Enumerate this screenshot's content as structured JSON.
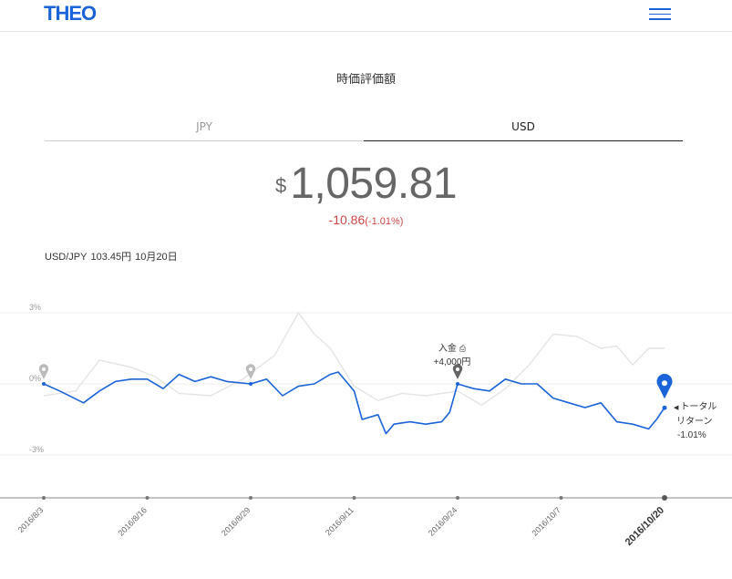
{
  "header": {
    "logo": "THEO"
  },
  "section_title": "時価評価額",
  "tabs": [
    {
      "label": "JPY",
      "active": false
    },
    {
      "label": "USD",
      "active": true
    }
  ],
  "value": {
    "currency": "$",
    "amount": "1,059.81"
  },
  "change": {
    "amount": "-10.86",
    "percent": "(-1.01%)"
  },
  "rate": {
    "label": "USD/JPY",
    "value": "103.45円",
    "date": "10月20日"
  },
  "deposit": {
    "label": "入金",
    "amount": "+4,000円"
  },
  "total_return": {
    "label_1": "トータル",
    "label_2": "リターン",
    "value": "-1.01%"
  },
  "colors": {
    "accent": "#1a63d8",
    "negative": "#d04545",
    "benchmark": "#e4e4e4"
  },
  "chart_data": {
    "type": "line",
    "y_unit": "%",
    "ylim": [
      -4.5,
      4
    ],
    "yticks": [
      {
        "value": 3,
        "label": "3%"
      },
      {
        "value": 0,
        "label": "0%"
      },
      {
        "value": -3,
        "label": "-3%"
      }
    ],
    "x_labels": [
      "2016/8/3",
      "2016/8/16",
      "2016/8/29",
      "2016/9/11",
      "2016/9/24",
      "2016/10/7",
      "2016/10/20"
    ],
    "series": [
      {
        "role": "portfolio",
        "x": [
          "2016/8/3",
          "2016/8/5",
          "2016/8/8",
          "2016/8/10",
          "2016/8/12",
          "2016/8/14",
          "2016/8/16",
          "2016/8/18",
          "2016/8/20",
          "2016/8/22",
          "2016/8/24",
          "2016/8/26",
          "2016/8/29",
          "2016/8/31",
          "2016/9/2",
          "2016/9/4",
          "2016/9/6",
          "2016/9/8",
          "2016/9/9",
          "2016/9/11",
          "2016/9/12",
          "2016/9/14",
          "2016/9/15",
          "2016/9/16",
          "2016/9/18",
          "2016/9/20",
          "2016/9/22",
          "2016/9/23",
          "2016/9/24",
          "2016/9/26",
          "2016/9/28",
          "2016/9/30",
          "2016/10/2",
          "2016/10/4",
          "2016/10/6",
          "2016/10/8",
          "2016/10/10",
          "2016/10/12",
          "2016/10/14",
          "2016/10/16",
          "2016/10/18",
          "2016/10/19",
          "2016/10/20"
        ],
        "values": [
          0,
          -0.3,
          -0.8,
          -0.3,
          0.1,
          0.2,
          0.2,
          -0.2,
          0.4,
          0.1,
          0.3,
          0.1,
          0,
          0.2,
          -0.5,
          -0.1,
          0,
          0.4,
          0.5,
          -0.3,
          -1.5,
          -1.3,
          -2.1,
          -1.7,
          -1.6,
          -1.7,
          -1.6,
          -1.2,
          0,
          -0.2,
          -0.3,
          0.2,
          0,
          0,
          -0.6,
          -0.8,
          -1,
          -0.8,
          -1.6,
          -1.7,
          -1.9,
          -1.5,
          -1
        ]
      },
      {
        "role": "benchmark",
        "x": [
          "2016/8/3",
          "2016/8/7",
          "2016/8/10",
          "2016/8/14",
          "2016/8/17",
          "2016/8/20",
          "2016/8/24",
          "2016/8/28",
          "2016/9/1",
          "2016/9/4",
          "2016/9/6",
          "2016/9/8",
          "2016/9/11",
          "2016/9/14",
          "2016/9/17",
          "2016/9/20",
          "2016/9/24",
          "2016/9/27",
          "2016/9/30",
          "2016/10/3",
          "2016/10/6",
          "2016/10/9",
          "2016/10/12",
          "2016/10/14",
          "2016/10/16",
          "2016/10/18",
          "2016/10/20"
        ],
        "values": [
          -0.5,
          -0.3,
          1,
          0.7,
          0.3,
          -0.4,
          -0.5,
          0.2,
          1.2,
          3,
          2.1,
          1.5,
          -0.1,
          -0.7,
          -0.4,
          -0.5,
          -0.3,
          -0.9,
          -0.2,
          0.8,
          2.1,
          2,
          1.5,
          1.6,
          0.8,
          1.5,
          1.5
        ]
      }
    ],
    "markers": [
      {
        "x": "2016/8/3",
        "value": 0,
        "type": "inactive"
      },
      {
        "x": "2016/8/29",
        "value": 0,
        "type": "inactive"
      },
      {
        "x": "2016/9/24",
        "value": 0,
        "type": "deposit"
      },
      {
        "x": "2016/10/20",
        "value": -1.01,
        "type": "current"
      }
    ]
  }
}
